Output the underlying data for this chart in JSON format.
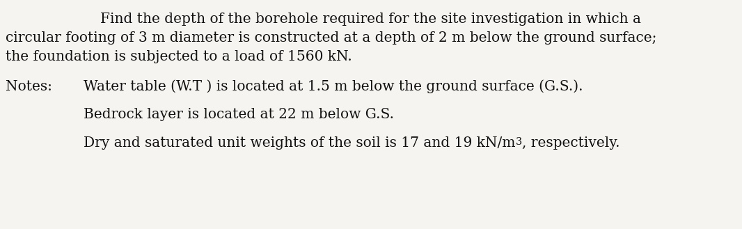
{
  "background_color": "#f5f4f1",
  "main_text_line1": "Find the depth of the borehole required for the site investigation in which a",
  "main_text_line2": "circular footing of 3 m diameter is constructed at a depth of 2 m below the ground surface;",
  "main_text_line3": "the foundation is subjected to a load of 1560 kN.",
  "notes_label": "Notes:",
  "note1": "Water table (W.T ) is located at 1.5 m below the ground surface (G.S.).",
  "note2": "Bedrock layer is located at 22 m below G.S.",
  "note3_part1": "Dry and saturated unit weights of the soil is 17 and 19 kN/m",
  "note3_superscript": "3",
  "note3_part2": ", respectively.",
  "font_family": "DejaVu Serif",
  "font_size_main": 14.5,
  "text_color": "#111111",
  "fig_width": 10.66,
  "fig_height": 3.29,
  "dpi": 100
}
